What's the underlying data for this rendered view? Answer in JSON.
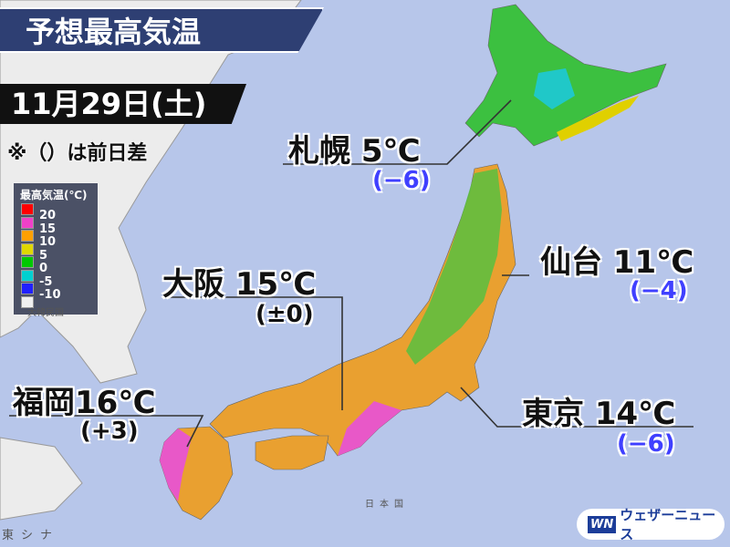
{
  "title": "予想最高気温",
  "date": "11月29日(土)",
  "note": "※（）は前日差",
  "legend": {
    "title": "最高気温(℃)",
    "items": [
      {
        "label": "20",
        "color": "#ff0000"
      },
      {
        "label": "15",
        "color": "#f040c8"
      },
      {
        "label": "10",
        "color": "#ffa000"
      },
      {
        "label": "5",
        "color": "#e0d800"
      },
      {
        "label": "0",
        "color": "#00c800"
      },
      {
        "label": "-5",
        "color": "#00d0d0"
      },
      {
        "label": "-10",
        "color": "#2020ff"
      },
      {
        "label": "",
        "color": "#f0f0f0"
      }
    ]
  },
  "cities": [
    {
      "name": "札幌",
      "temp": "5℃",
      "diff": "(−6)"
    },
    {
      "name": "仙台",
      "temp": "11℃",
      "diff": "(−4)"
    },
    {
      "name": "大阪",
      "temp": "15℃",
      "diff": "(±0)"
    },
    {
      "name": "福岡",
      "temp": "16℃",
      "diff": "(+3)"
    },
    {
      "name": "東京",
      "temp": "14℃",
      "diff": "(−6)"
    }
  ],
  "map_labels": {
    "korea": "大韓民国",
    "japan": "日本国",
    "east_china_sea": "東シナ"
  },
  "logo": {
    "mark": "WN",
    "text": "ウェザーニュース"
  },
  "colors": {
    "sea": "#b7c6ea",
    "title_bg": "#2e3f73",
    "diff_text": "#4040ff"
  }
}
